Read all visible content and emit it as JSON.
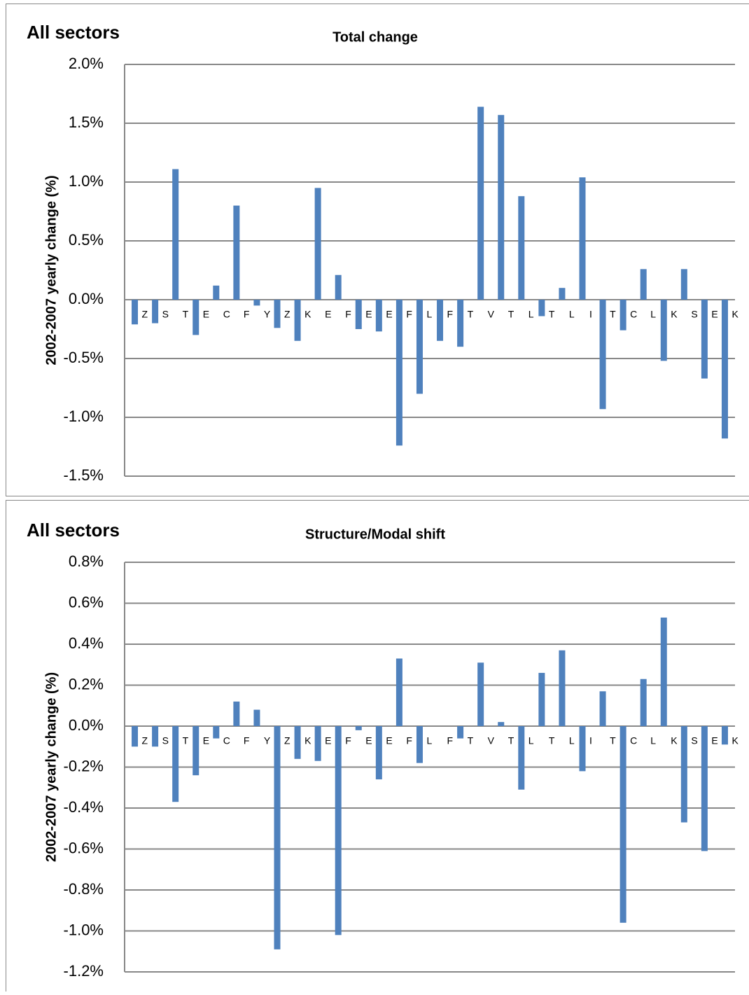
{
  "chart_data": [
    {
      "type": "bar",
      "heading": "All sectors",
      "title": "Total change",
      "y_label": "2002-2007 yearly change (%)",
      "categories": [
        "Z",
        "S",
        "T",
        "E",
        "C",
        "F",
        "Y",
        "Z",
        "K",
        "E",
        "F",
        "E",
        "E",
        "F",
        "L",
        "F",
        "T",
        "V",
        "T",
        "L",
        "T",
        "L",
        "I",
        "T",
        "C",
        "L",
        "K",
        "S",
        "E",
        "K"
      ],
      "values": [
        -0.21,
        -0.2,
        1.11,
        -0.3,
        0.12,
        0.8,
        -0.05,
        -0.24,
        -0.35,
        0.95,
        0.21,
        -0.25,
        -0.27,
        -1.24,
        -0.8,
        -0.35,
        -0.4,
        1.64,
        1.57,
        0.88,
        -0.14,
        0.1,
        1.04,
        -0.93,
        -0.26,
        0.26,
        -0.52,
        0.26,
        -0.67,
        -1.18
      ],
      "color": "#4f81bd",
      "ylim": [
        -1.5,
        2.0
      ],
      "yticks": [
        {
          "value": -1.5,
          "label": "-1.5%"
        },
        {
          "value": -1.0,
          "label": "-1.0%"
        },
        {
          "value": -0.5,
          "label": "-0.5%"
        },
        {
          "value": 0,
          "label": "0.0%"
        },
        {
          "value": 0.5,
          "label": "0.5%"
        },
        {
          "value": 1.0,
          "label": "1.0%"
        },
        {
          "value": 1.5,
          "label": "1.5%"
        },
        {
          "value": 2.0,
          "label": "2.0%"
        }
      ],
      "grid": true
    },
    {
      "type": "bar",
      "heading": "All sectors",
      "title": "Structure/Modal shift",
      "y_label": "2002-2007 yearly change (%)",
      "categories": [
        "Z",
        "S",
        "T",
        "E",
        "C",
        "F",
        "Y",
        "Z",
        "K",
        "E",
        "F",
        "E",
        "E",
        "F",
        "L",
        "F",
        "T",
        "V",
        "T",
        "L",
        "T",
        "L",
        "I",
        "T",
        "C",
        "L",
        "K",
        "S",
        "E",
        "K"
      ],
      "values": [
        -0.1,
        -0.1,
        -0.37,
        -0.24,
        -0.06,
        0.12,
        0.08,
        -1.09,
        -0.16,
        -0.17,
        -1.02,
        -0.02,
        -0.26,
        0.33,
        -0.18,
        0,
        -0.06,
        0.31,
        0.02,
        -0.31,
        0.26,
        0.37,
        -0.22,
        0.17,
        -0.96,
        0.23,
        0.53,
        -0.47,
        -0.61,
        -0.09
      ],
      "color": "#4f81bd",
      "ylim": [
        -1.2,
        0.8
      ],
      "yticks": [
        {
          "value": -1.2,
          "label": "-1.2%"
        },
        {
          "value": -1.0,
          "label": "-1.0%"
        },
        {
          "value": -0.8,
          "label": "-0.8%"
        },
        {
          "value": -0.6,
          "label": "-0.6%"
        },
        {
          "value": -0.4,
          "label": "-0.4%"
        },
        {
          "value": -0.2,
          "label": "-0.2%"
        },
        {
          "value": 0,
          "label": "0.0%"
        },
        {
          "value": 0.2,
          "label": "0.2%"
        },
        {
          "value": 0.4,
          "label": "0.4%"
        },
        {
          "value": 0.6,
          "label": "0.6%"
        },
        {
          "value": 0.8,
          "label": "0.8%"
        }
      ],
      "grid": true
    }
  ]
}
